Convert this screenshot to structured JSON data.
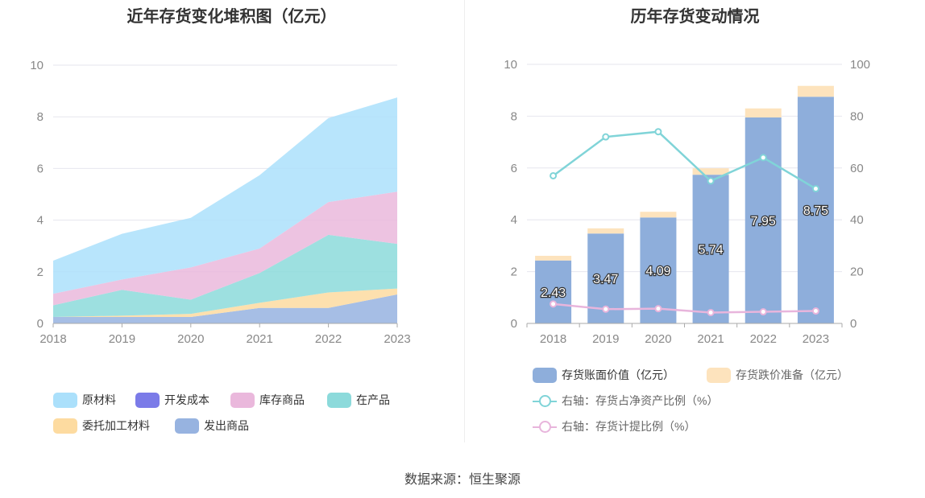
{
  "left_chart": {
    "title": "近年存货变化堆积图（亿元）",
    "legend": [
      {
        "label": "原材料",
        "color": "#abe0fb"
      },
      {
        "label": "开发成本",
        "color": "#7b7be8"
      },
      {
        "label": "库存商品",
        "color": "#eab8dc"
      },
      {
        "label": "在产品",
        "color": "#8cdadb"
      },
      {
        "label": "委托加工材料",
        "color": "#fddba0"
      },
      {
        "label": "发出商品",
        "color": "#97b3e0"
      }
    ]
  },
  "right_chart": {
    "title": "历年存货变动情况",
    "legend": [
      {
        "label": "存货账面价值（亿元）",
        "color": "#8eaedb",
        "kind": "box"
      },
      {
        "label": "存货跌价准备（亿元）",
        "color": "#fde3bd",
        "kind": "box"
      },
      {
        "label": "右轴：存货占净资产比例（%）",
        "color": "#80d4d8",
        "kind": "line"
      },
      {
        "label": "右轴：存货计提比例（%）",
        "color": "#e8b5dc",
        "kind": "line"
      }
    ]
  },
  "source_text": "数据来源：恒生聚源",
  "chart_data": [
    {
      "type": "area",
      "stacked": true,
      "title": "近年存货变化堆积图（亿元）",
      "x": [
        "2018",
        "2019",
        "2020",
        "2021",
        "2022",
        "2023"
      ],
      "ylim": [
        0,
        10
      ],
      "yticks": [
        "0",
        "2",
        "4",
        "6",
        "8",
        "10"
      ],
      "grid": true,
      "legend_position": "bottom",
      "series": [
        {
          "name": "发出商品",
          "color": "#97b3e0",
          "values": [
            0.25,
            0.25,
            0.25,
            0.6,
            0.6,
            1.12
          ]
        },
        {
          "name": "委托加工材料",
          "color": "#fddba0",
          "values": [
            0.0,
            0.05,
            0.12,
            0.2,
            0.6,
            0.23
          ]
        },
        {
          "name": "在产品",
          "color": "#8cdadb",
          "values": [
            0.45,
            1.0,
            0.55,
            1.15,
            2.23,
            1.73
          ]
        },
        {
          "name": "开发成本",
          "color": "#7b7be8",
          "values": [
            0,
            0,
            0,
            0,
            0,
            0
          ]
        },
        {
          "name": "库存商品",
          "color": "#eab8dc",
          "values": [
            0.45,
            0.4,
            1.25,
            0.95,
            1.27,
            2.02
          ]
        },
        {
          "name": "原材料",
          "color": "#abe0fb",
          "values": [
            1.28,
            1.77,
            1.92,
            2.84,
            3.25,
            3.65
          ]
        }
      ]
    },
    {
      "type": "bar",
      "stacked": true,
      "title": "历年存货变动情况",
      "categories": [
        "2018",
        "2019",
        "2020",
        "2021",
        "2022",
        "2023"
      ],
      "ylim": [
        0,
        10
      ],
      "yticks": [
        "0",
        "2",
        "4",
        "6",
        "8",
        "10"
      ],
      "y2lim": [
        0,
        100
      ],
      "y2ticks": [
        "0",
        "20",
        "40",
        "60",
        "80",
        "100"
      ],
      "grid": true,
      "legend_position": "bottom",
      "series": [
        {
          "name": "存货账面价值（亿元）",
          "color": "#8eaedb",
          "values": [
            2.43,
            3.47,
            4.09,
            5.74,
            7.95,
            8.75
          ],
          "labels": [
            "2.43",
            "3.47",
            "4.09",
            "5.74",
            "7.95",
            "8.75"
          ]
        },
        {
          "name": "存货跌价准备（亿元）",
          "color": "#fde3bd",
          "values": [
            0.18,
            0.2,
            0.22,
            0.25,
            0.35,
            0.42
          ]
        },
        {
          "name": "右轴：存货占净资产比例（%）",
          "type": "line",
          "axis": "right",
          "color": "#80d4d8",
          "values": [
            57,
            72,
            74,
            55,
            64,
            52
          ]
        },
        {
          "name": "右轴：存货计提比例（%）",
          "type": "line",
          "axis": "right",
          "color": "#e8b5dc",
          "values": [
            7.5,
            5.5,
            5.7,
            4.2,
            4.5,
            4.8
          ]
        }
      ]
    }
  ]
}
